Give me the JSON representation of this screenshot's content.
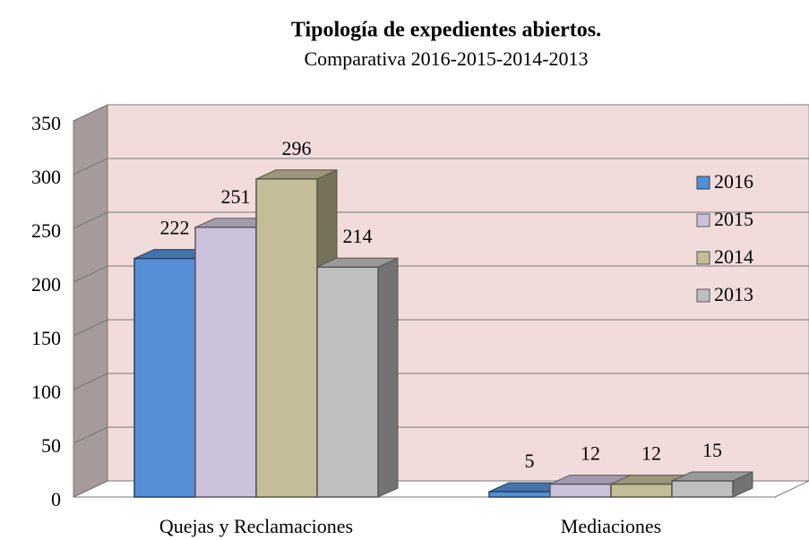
{
  "chart_data": {
    "type": "bar3d",
    "title": "Tipología de expedientes abiertos.",
    "subtitle": "Comparativa 2016-2015-2014-2013",
    "categories": [
      "Quejas y Reclamaciones",
      "Mediaciones"
    ],
    "series": [
      {
        "name": "2016",
        "color": "#558ed5",
        "values": [
          222,
          5
        ]
      },
      {
        "name": "2015",
        "color": "#ccc1da",
        "values": [
          251,
          12
        ]
      },
      {
        "name": "2014",
        "color": "#c4bd97",
        "values": [
          296,
          12
        ]
      },
      {
        "name": "2013",
        "color": "#bfbfbf",
        "values": [
          214,
          15
        ]
      }
    ],
    "ylim": [
      0,
      350
    ],
    "yticks": [
      0,
      50,
      100,
      150,
      200,
      250,
      300,
      350
    ],
    "grid": true,
    "legend": "right"
  }
}
